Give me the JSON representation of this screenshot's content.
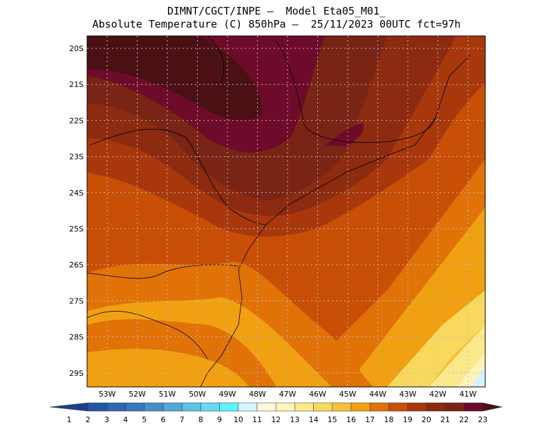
{
  "title": {
    "line1": "DIMNT/CGCT/INPE –  Model Eta05_M01_",
    "line2": "Absolute Temperature (C) 850hPa –  25/11/2023 00UTC fct=97h"
  },
  "map": {
    "lat_labels": [
      "20S",
      "21S",
      "22S",
      "23S",
      "24S",
      "25S",
      "26S",
      "27S",
      "28S",
      "29S"
    ],
    "lon_labels": [
      "53W",
      "52W",
      "51W",
      "50W",
      "49W",
      "48W",
      "47W",
      "46W",
      "45W",
      "44W",
      "43W",
      "42W",
      "41W"
    ],
    "grid": "dotted",
    "colors": {
      "t23": "#4a1014",
      "t22": "#6e0b2a",
      "t21": "#7a2415",
      "t20": "#8c2b0f",
      "t19": "#a8380c",
      "t18": "#c94e06",
      "t17": "#e07208",
      "t16": "#f0a010",
      "t15": "#f5c13a",
      "t14": "#f8d95e",
      "t13": "#fbe98b",
      "t12": "#fef3b8",
      "t11": "#fff7dd",
      "t10": "#d6f4ff"
    }
  },
  "colorbar": {
    "labels": [
      "1",
      "2",
      "3",
      "4",
      "5",
      "6",
      "7",
      "8",
      "9",
      "10",
      "11",
      "12",
      "13",
      "14",
      "15",
      "16",
      "17",
      "18",
      "19",
      "20",
      "21",
      "22",
      "23"
    ],
    "colors": [
      "#1e3f8e",
      "#2956a4",
      "#3066b0",
      "#3a78bb",
      "#4690c8",
      "#52a8d6",
      "#5ec2e3",
      "#68d9ef",
      "#5cf4ff",
      "#d6f4ff",
      "#fff7dd",
      "#fef3b8",
      "#fbe98b",
      "#f8d95e",
      "#f5c13a",
      "#f0a010",
      "#e07208",
      "#c94e06",
      "#a8380c",
      "#8c2b0f",
      "#7a2415",
      "#6e0b2a",
      "#4a1014"
    ]
  }
}
